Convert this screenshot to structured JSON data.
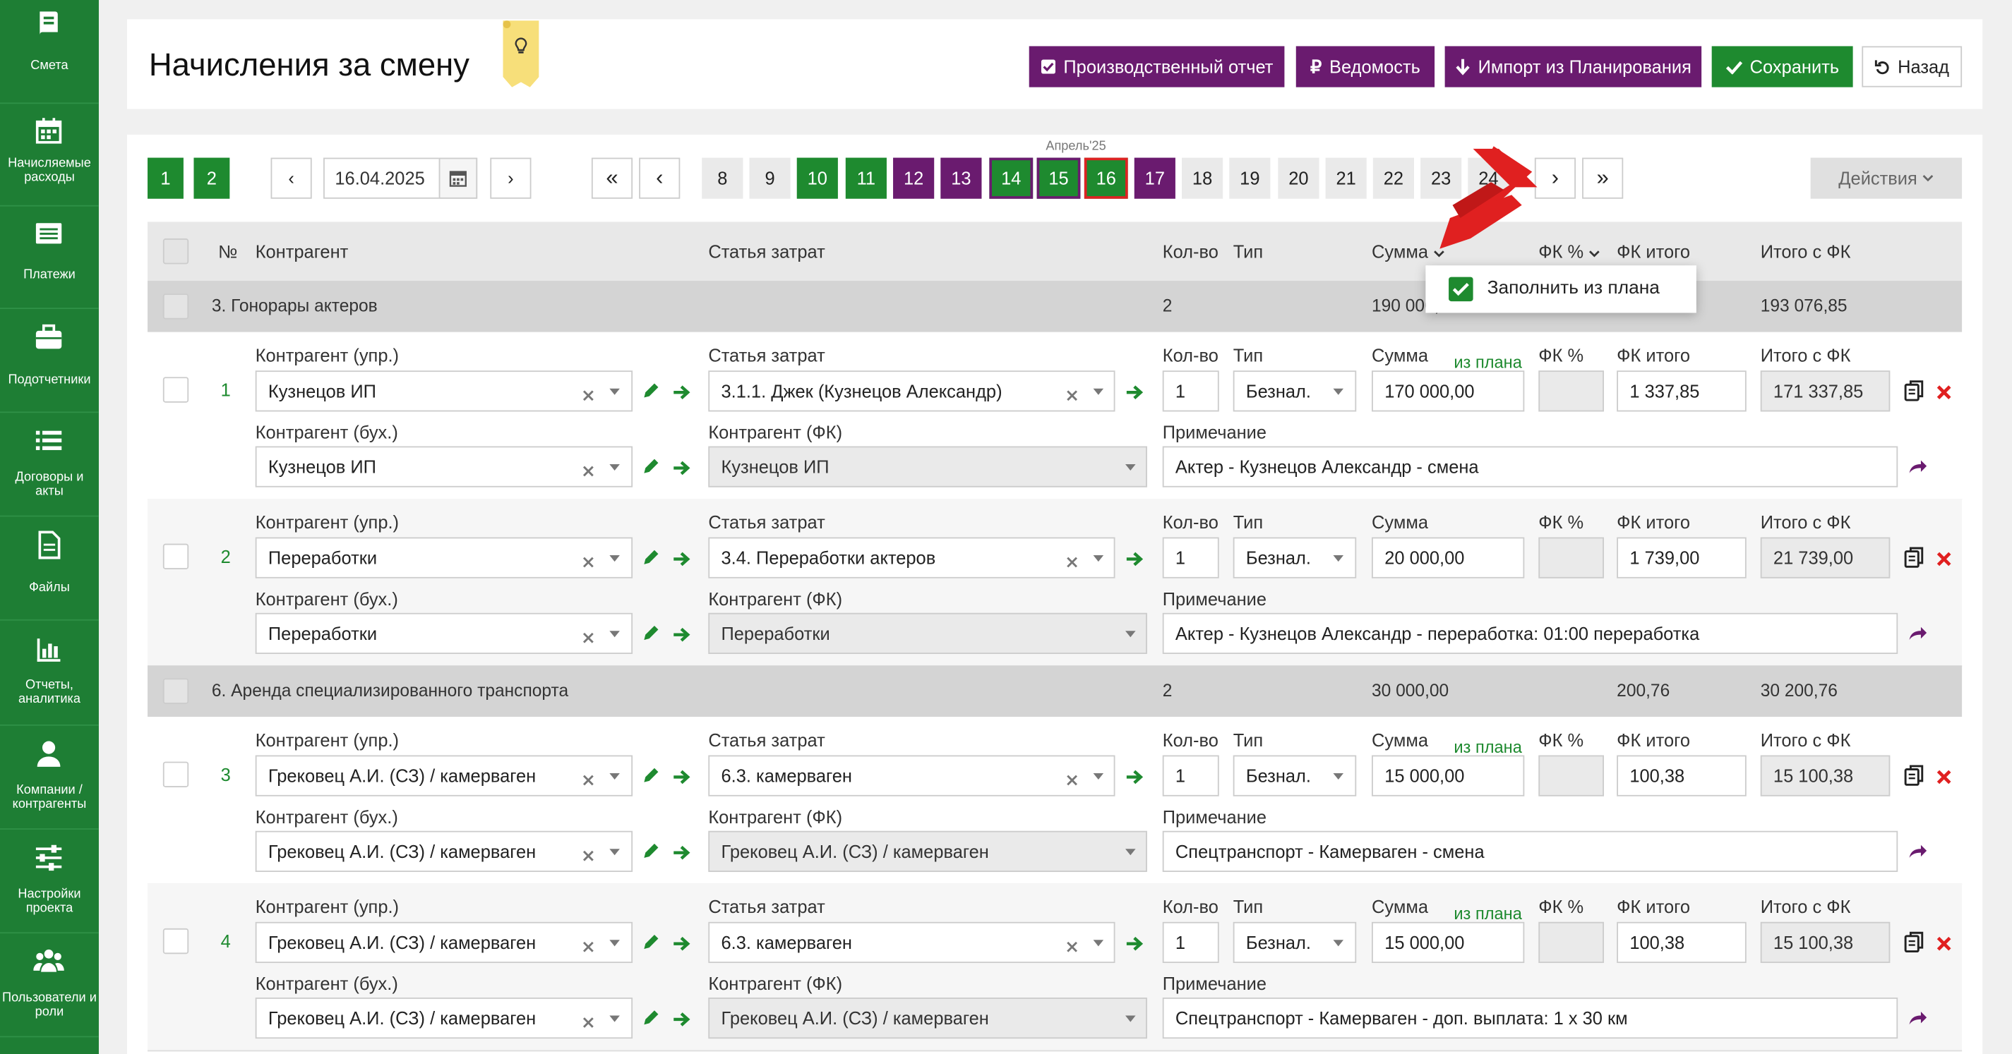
{
  "sidebar": {
    "items": [
      {
        "label": "Смета",
        "icon": "book-icon"
      },
      {
        "label": "Начисляемые расходы",
        "icon": "calendar-icon"
      },
      {
        "label": "Платежи",
        "icon": "list-card-icon"
      },
      {
        "label": "Подотчетники",
        "icon": "briefcase-icon"
      },
      {
        "label": "Договоры и акты",
        "icon": "list-icon"
      },
      {
        "label": "Файлы",
        "icon": "file-icon"
      },
      {
        "label": "Отчеты, аналитика",
        "icon": "bar-chart-icon"
      },
      {
        "label": "Компании / контрагенты",
        "icon": "user-icon"
      },
      {
        "label": "Настройки проекта",
        "icon": "sliders-icon"
      },
      {
        "label": "Пользователи и роли",
        "icon": "users-icon"
      }
    ]
  },
  "header": {
    "title": "Начисления за смену",
    "buttons": {
      "report": "Производственный отчет",
      "statement": "Ведомость",
      "import": "Импорт из Планирования",
      "save": "Сохранить",
      "back": "Назад"
    }
  },
  "toolbar": {
    "pages": [
      "1",
      "2"
    ],
    "date": "16.04.2025",
    "prev": "‹",
    "next": "›",
    "first": "«",
    "last": "»",
    "month": "Апрель'25",
    "days": [
      "8",
      "9",
      "10",
      "11",
      "12",
      "13",
      "14",
      "15",
      "16",
      "17",
      "18",
      "19",
      "20",
      "21",
      "22",
      "23",
      "24"
    ],
    "actions": "Действия"
  },
  "table": {
    "headers": {
      "num": "№",
      "contractor": "Контрагент",
      "cost_item": "Статья затрат",
      "qty": "Кол-во",
      "type": "Тип",
      "sum": "Сумма",
      "fk_pct": "ФК %",
      "fk_total": "ФК итого",
      "total_fk": "Итого с ФК"
    },
    "labels": {
      "contractor_mgmt": "Контрагент (упр.)",
      "contractor_acc": "Контрагент (бух.)",
      "cost_item": "Статья затрат",
      "contractor_fk": "Контрагент (ФК)",
      "qty": "Кол-во",
      "type": "Тип",
      "sum": "Сумма",
      "from_plan": "из плана",
      "fk_pct": "ФК %",
      "fk_total": "ФК итого",
      "total_fk": "Итого с ФК",
      "note": "Примечание"
    },
    "groups": [
      {
        "title": "3. Гонорары актеров",
        "qty": "2",
        "sum": "190 000,00",
        "fk_total": "",
        "total": "193 076,85",
        "rows": [
          {
            "num": "1",
            "contractor_mgmt": "Кузнецов ИП",
            "contractor_acc": "Кузнецов ИП",
            "cost_item": "3.1.1. Джек (Кузнецов Александр)",
            "contractor_fk": "Кузнецов ИП",
            "qty": "1",
            "type": "Безнал.",
            "sum": "170 000,00",
            "from_plan": true,
            "fk_pct": "",
            "fk_total": "1 337,85",
            "total": "171 337,85",
            "note": "Актер - Кузнецов Александр - смена"
          },
          {
            "num": "2",
            "contractor_mgmt": "Переработки",
            "contractor_acc": "Переработки",
            "cost_item": "3.4. Переработки актеров",
            "contractor_fk": "Переработки",
            "qty": "1",
            "type": "Безнал.",
            "sum": "20 000,00",
            "from_plan": false,
            "fk_pct": "",
            "fk_total": "1 739,00",
            "total": "21 739,00",
            "note": "Актер - Кузнецов Александр - переработка: 01:00 переработка"
          }
        ]
      },
      {
        "title": "6. Аренда специализированного транспорта",
        "qty": "2",
        "sum": "30 000,00",
        "fk_total": "200,76",
        "total": "30 200,76",
        "rows": [
          {
            "num": "3",
            "contractor_mgmt": "Грековец А.И. (СЗ) / камерваген",
            "contractor_acc": "Грековец А.И. (СЗ) / камерваген",
            "cost_item": "6.3. камерваген",
            "contractor_fk": "Грековец А.И. (СЗ) / камерваген",
            "qty": "1",
            "type": "Безнал.",
            "sum": "15 000,00",
            "from_plan": true,
            "fk_pct": "",
            "fk_total": "100,38",
            "total": "15 100,38",
            "note": "Спецтранспорт - Камерваген - смена"
          },
          {
            "num": "4",
            "contractor_mgmt": "Грековец А.И. (СЗ) / камерваген",
            "contractor_acc": "Грековец А.И. (СЗ) / камерваген",
            "cost_item": "6.3. камерваген",
            "contractor_fk": "Грековец А.И. (СЗ) / камерваген",
            "qty": "1",
            "type": "Безнал.",
            "sum": "15 000,00",
            "from_plan": true,
            "fk_pct": "",
            "fk_total": "100,38",
            "total": "15 100,38",
            "note": "Спецтранспорт - Камерваген - доп. выплата: 1 х 30 км"
          }
        ]
      }
    ]
  },
  "dropdown": {
    "fill_from_plan": "Заполнить из плана",
    "checked": true
  },
  "colors": {
    "green": "#1e8a2f",
    "purple": "#6a1b6f",
    "red_arrow": "#e02020",
    "sidebar": "#1e7e34"
  }
}
